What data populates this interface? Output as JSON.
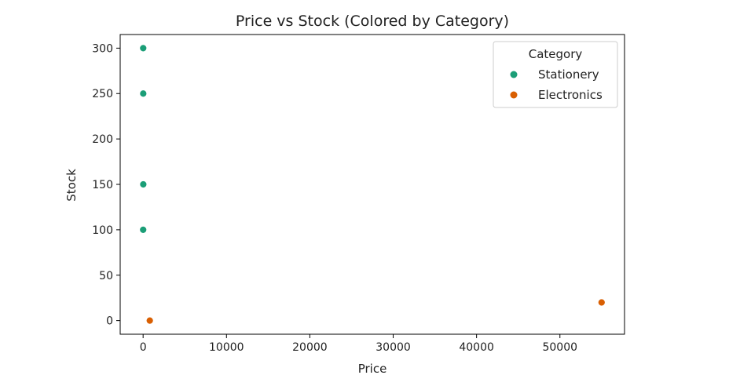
{
  "chart_data": {
    "type": "scatter",
    "title": "Price vs Stock (Colored by Category)",
    "xlabel": "Price",
    "ylabel": "Stock",
    "xlim": [
      -2750,
      57750
    ],
    "ylim": [
      -15,
      315
    ],
    "xticks": [
      0,
      10000,
      20000,
      30000,
      40000,
      50000
    ],
    "yticks": [
      0,
      50,
      100,
      150,
      200,
      250,
      300
    ],
    "grid": false,
    "legend": {
      "title": "Category",
      "placement": "top-right"
    },
    "series": [
      {
        "name": "Stationery",
        "color": "#1b9e77",
        "points": [
          {
            "x": 10,
            "y": 300
          },
          {
            "x": 15,
            "y": 250
          },
          {
            "x": 20,
            "y": 150
          },
          {
            "x": 5,
            "y": 100
          }
        ]
      },
      {
        "name": "Electronics",
        "color": "#d95f02",
        "points": [
          {
            "x": 800,
            "y": 0
          },
          {
            "x": 55000,
            "y": 20
          }
        ]
      }
    ]
  }
}
